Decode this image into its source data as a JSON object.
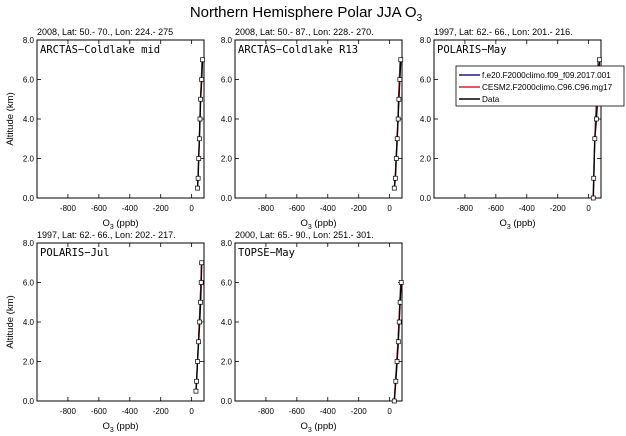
{
  "figure": {
    "title": "Northern Hemisphere Polar JJA O",
    "title_sub": "3"
  },
  "axis_text": {
    "x_label": "O",
    "x_label_sub": "3",
    "x_label_unit": " (ppb)",
    "y_label": "Altitude (km)"
  },
  "legend": {
    "entries": [
      {
        "label": "f.e20.F2000climo.f09_f09.2017.001",
        "color": "#1a1a8c"
      },
      {
        "label": "CESM2.F2000climo.C96.C96.mg17",
        "color": "#e02020"
      },
      {
        "label": "Data",
        "color": "#000000"
      }
    ]
  },
  "chart_data": [
    {
      "type": "line",
      "header": "2008, Lat:  50.- 70., Lon: 224.- 275",
      "campaign": "ARCTAS−Coldlake mid",
      "xlim": [
        -1000,
        80
      ],
      "ylim": [
        0,
        8
      ],
      "xticks": [
        -800,
        -600,
        -400,
        -200,
        0
      ],
      "yticks": [
        0,
        2,
        4,
        6,
        8
      ],
      "show_xlabel": true,
      "show_ylabel": true,
      "series": [
        {
          "color": "#1a1a8c",
          "x": [
            38,
            42,
            46,
            50,
            54,
            58,
            63,
            68
          ],
          "y": [
            0.5,
            1.0,
            2.0,
            3.0,
            4.0,
            5.0,
            6.0,
            7.0
          ]
        },
        {
          "color": "#e02020",
          "x": [
            37,
            41,
            45,
            49,
            53,
            57,
            62,
            67
          ],
          "y": [
            0.5,
            1.0,
            2.0,
            3.0,
            4.0,
            5.0,
            6.0,
            7.0
          ]
        },
        {
          "color": "#000000",
          "x": [
            38,
            42,
            46,
            50,
            54,
            58,
            65,
            70
          ],
          "y": [
            0.5,
            1.0,
            2.0,
            3.0,
            4.0,
            5.0,
            6.0,
            7.0
          ],
          "markers": true
        }
      ]
    },
    {
      "type": "line",
      "header": "2008, Lat:  50.- 87., Lon: 228.- 270.",
      "campaign": "ARCTAS−Coldlake R13",
      "xlim": [
        -1000,
        80
      ],
      "ylim": [
        0,
        8
      ],
      "xticks": [
        -800,
        -600,
        -400,
        -200,
        0
      ],
      "yticks": [
        0,
        2,
        4,
        6,
        8
      ],
      "show_xlabel": true,
      "show_ylabel": false,
      "series": [
        {
          "color": "#1a1a8c",
          "x": [
            30,
            36,
            42,
            48,
            54,
            58,
            63,
            68
          ],
          "y": [
            0.5,
            1.0,
            2.0,
            3.0,
            4.0,
            5.0,
            6.0,
            7.0
          ]
        },
        {
          "color": "#e02020",
          "x": [
            29,
            35,
            41,
            47,
            53,
            57,
            62,
            67
          ],
          "y": [
            0.5,
            1.0,
            2.0,
            3.0,
            4.0,
            5.0,
            6.0,
            7.0
          ]
        },
        {
          "color": "#000000",
          "x": [
            30,
            37,
            43,
            49,
            55,
            60,
            66,
            72
          ],
          "y": [
            0.5,
            1.0,
            2.0,
            3.0,
            4.0,
            5.0,
            6.0,
            7.0
          ],
          "markers": true
        }
      ]
    },
    {
      "type": "line",
      "header": "1997, Lat: 62.- 66., Lon: 201.- 216.",
      "campaign": "POLARIS−May",
      "xlim": [
        -1000,
        80
      ],
      "ylim": [
        0,
        8
      ],
      "xticks": [
        -800,
        -600,
        -400,
        -200,
        0
      ],
      "yticks": [
        0,
        2,
        4,
        6,
        8
      ],
      "show_xlabel": true,
      "show_ylabel": false,
      "series": [
        {
          "color": "#1a1a8c",
          "x": [
            30,
            34,
            40,
            48,
            55,
            62
          ],
          "y": [
            0.0,
            1.0,
            3.0,
            4.5,
            6.0,
            7.0
          ]
        },
        {
          "color": "#e02020",
          "x": [
            29,
            33,
            39,
            47,
            54,
            61
          ],
          "y": [
            0.0,
            1.0,
            3.0,
            4.5,
            6.0,
            7.0
          ]
        },
        {
          "color": "#000000",
          "x": [
            30,
            33,
            40,
            50,
            58,
            63,
            70
          ],
          "y": [
            0.0,
            1.0,
            3.0,
            4.0,
            5.0,
            6.0,
            7.0
          ],
          "markers": true
        }
      ]
    },
    {
      "type": "line",
      "header": "1997, Lat: 62.- 66., Lon: 202.- 217.",
      "campaign": "POLARIS−Jul",
      "xlim": [
        -1000,
        80
      ],
      "ylim": [
        0,
        8
      ],
      "xticks": [
        -800,
        -600,
        -400,
        -200,
        0
      ],
      "yticks": [
        0,
        2,
        4,
        6,
        8
      ],
      "show_xlabel": true,
      "show_ylabel": true,
      "series": [
        {
          "color": "#1a1a8c",
          "x": [
            28,
            32,
            38,
            44,
            50,
            55,
            60,
            64
          ],
          "y": [
            0.5,
            1.0,
            2.0,
            3.0,
            4.0,
            5.0,
            6.0,
            7.0
          ]
        },
        {
          "color": "#e02020",
          "x": [
            27,
            31,
            37,
            43,
            49,
            54,
            59,
            63
          ],
          "y": [
            0.5,
            1.0,
            2.0,
            3.0,
            4.0,
            5.0,
            6.0,
            7.0
          ]
        },
        {
          "color": "#000000",
          "x": [
            28,
            32,
            38,
            45,
            52,
            58,
            62,
            65
          ],
          "y": [
            0.5,
            1.0,
            2.0,
            3.0,
            4.0,
            5.0,
            6.0,
            7.0
          ],
          "markers": true
        }
      ]
    },
    {
      "type": "line",
      "header": "2000, Lat: 65.- 90., Lon: 251.- 301.",
      "campaign": "TOPSE−May",
      "xlim": [
        -1000,
        80
      ],
      "ylim": [
        0,
        8
      ],
      "xticks": [
        -800,
        -600,
        -400,
        -200,
        0
      ],
      "yticks": [
        0,
        2,
        4,
        6,
        8
      ],
      "show_xlabel": true,
      "show_ylabel": false,
      "series": [
        {
          "color": "#1a1a8c",
          "x": [
            30,
            38,
            46,
            54,
            60,
            66,
            72
          ],
          "y": [
            0.0,
            1.0,
            2.0,
            3.0,
            4.0,
            5.0,
            6.0
          ]
        },
        {
          "color": "#e02020",
          "x": [
            29,
            37,
            45,
            53,
            59,
            65,
            71
          ],
          "y": [
            0.0,
            1.0,
            2.0,
            3.0,
            4.0,
            5.0,
            6.0
          ]
        },
        {
          "color": "#000000",
          "x": [
            30,
            40,
            48,
            56,
            62,
            68,
            75
          ],
          "y": [
            0.0,
            1.0,
            2.0,
            3.0,
            4.0,
            5.0,
            6.0
          ],
          "markers": true
        }
      ]
    }
  ]
}
